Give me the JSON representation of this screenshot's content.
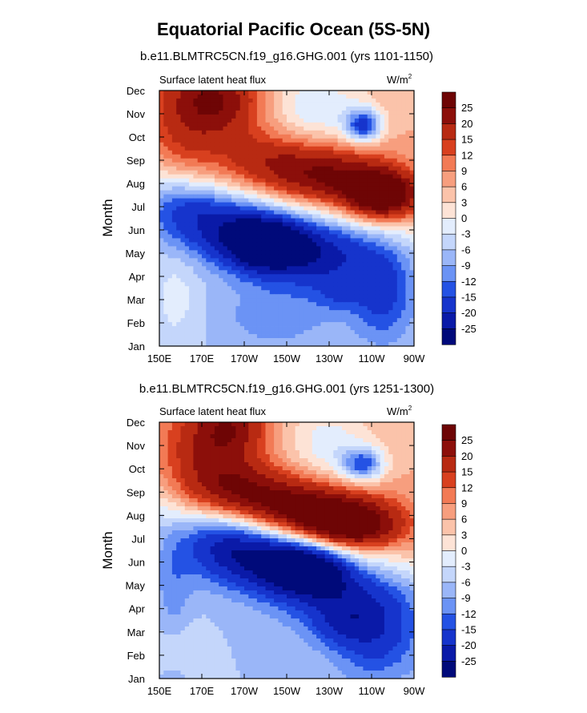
{
  "figure_title": "Equatorial Pacific Ocean (5S-5N)",
  "colors": {
    "levels_palette": [
      "#000a7a",
      "#0a1aa8",
      "#1634cc",
      "#2452e4",
      "#3d6fee",
      "#6b93f5",
      "#9ab6f8",
      "#c4d6fb",
      "#e3edfd",
      "#fde3d6",
      "#fbc3aa",
      "#f79e7e",
      "#f27a55",
      "#e85a34",
      "#d8401f",
      "#b82a12",
      "#8c0f0a",
      "#6e0505"
    ]
  },
  "chart_data": [
    {
      "type": "heatmap",
      "subtitle": "b.e11.BLMTRC5CN.f19_g16.GHG.001 (yrs 1101-1150)",
      "left_label": "Surface latent heat flux",
      "units_label": "W/m",
      "units_sup": "2",
      "ylabel": "Month",
      "x_ticks": [
        "150E",
        "170E",
        "170W",
        "150W",
        "130W",
        "110W",
        "90W"
      ],
      "xlim_deg_east": [
        150,
        270
      ],
      "y_ticks": [
        "Jan",
        "Feb",
        "Mar",
        "Apr",
        "May",
        "Jun",
        "Jul",
        "Aug",
        "Sep",
        "Oct",
        "Nov",
        "Dec"
      ],
      "colorbar_levels": [
        "25",
        "20",
        "15",
        "12",
        "9",
        "6",
        "3",
        "0",
        "-3",
        "-6",
        "-9",
        "-12",
        "-15",
        "-20",
        "-25"
      ],
      "contour_levels": [
        -25,
        -20,
        -15,
        -12,
        -9,
        -6,
        -3,
        0,
        3,
        6,
        9,
        12,
        15,
        20,
        25
      ],
      "features": [
        {
          "lon": 178,
          "month": 10.6,
          "value": 17,
          "s_lon": 14,
          "s_month": 1.1
        },
        {
          "lon": 160,
          "month": 9.0,
          "value": 9,
          "s_lon": 14,
          "s_month": 2.6
        },
        {
          "lon": 255,
          "month": 6.5,
          "value": 29,
          "s_lon": 12,
          "s_month": 0.75
        },
        {
          "lon": 230,
          "month": 7.3,
          "value": 18,
          "s_lon": 18,
          "s_month": 0.9
        },
        {
          "lon": 200,
          "month": 7.9,
          "value": 12,
          "s_lon": 18,
          "s_month": 1.0
        },
        {
          "lon": 246,
          "month": 9.5,
          "value": -21,
          "s_lon": 6,
          "s_month": 0.5
        },
        {
          "lon": 224,
          "month": 10.2,
          "value": -9,
          "s_lon": 16,
          "s_month": 1.2
        },
        {
          "lon": 200,
          "month": 4.4,
          "value": -26,
          "s_lon": 13,
          "s_month": 0.8
        },
        {
          "lon": 225,
          "month": 4.0,
          "value": -16,
          "s_lon": 20,
          "s_month": 1.0
        },
        {
          "lon": 178,
          "month": 5.2,
          "value": -15,
          "s_lon": 18,
          "s_month": 1.0
        },
        {
          "lon": 160,
          "month": 6.2,
          "value": -9,
          "s_lon": 12,
          "s_month": 0.9
        },
        {
          "lon": 234,
          "month": 2.3,
          "value": -6,
          "s_lon": 8,
          "s_month": 0.6
        },
        {
          "lon": 205,
          "month": 1.3,
          "value": -5,
          "s_lon": 18,
          "s_month": 1.0
        },
        {
          "lon": 255,
          "month": 2.3,
          "value": -11,
          "s_lon": 10,
          "s_month": 1.4
        },
        {
          "lon": 158,
          "month": 2.0,
          "value": 4,
          "s_lon": 8,
          "s_month": 1.5
        }
      ]
    },
    {
      "type": "heatmap",
      "subtitle": "b.e11.BLMTRC5CN.f19_g16.GHG.001 (yrs 1251-1300)",
      "left_label": "Surface latent heat flux",
      "units_label": "W/m",
      "units_sup": "2",
      "ylabel": "Month",
      "x_ticks": [
        "150E",
        "170E",
        "170W",
        "150W",
        "130W",
        "110W",
        "90W"
      ],
      "xlim_deg_east": [
        150,
        270
      ],
      "y_ticks": [
        "Jan",
        "Feb",
        "Mar",
        "Apr",
        "May",
        "Jun",
        "Jul",
        "Aug",
        "Sep",
        "Oct",
        "Nov",
        "Dec"
      ],
      "colorbar_levels": [
        "25",
        "20",
        "15",
        "12",
        "9",
        "6",
        "3",
        "0",
        "-3",
        "-6",
        "-9",
        "-12",
        "-15",
        "-20",
        "-25"
      ],
      "contour_levels": [
        -25,
        -20,
        -15,
        -12,
        -9,
        -6,
        -3,
        0,
        3,
        6,
        9,
        12,
        15,
        20,
        25
      ],
      "features": [
        {
          "lon": 184,
          "month": 10.8,
          "value": 15,
          "s_lon": 12,
          "s_month": 1.0
        },
        {
          "lon": 168,
          "month": 9.4,
          "value": 10,
          "s_lon": 14,
          "s_month": 2.0
        },
        {
          "lon": 238,
          "month": 6.6,
          "value": 30,
          "s_lon": 18,
          "s_month": 0.8
        },
        {
          "lon": 210,
          "month": 7.5,
          "value": 20,
          "s_lon": 20,
          "s_month": 0.9
        },
        {
          "lon": 185,
          "month": 8.2,
          "value": 12,
          "s_lon": 14,
          "s_month": 1.0
        },
        {
          "lon": 246,
          "month": 9.2,
          "value": -18,
          "s_lon": 7,
          "s_month": 0.5
        },
        {
          "lon": 230,
          "month": 9.9,
          "value": -8,
          "s_lon": 14,
          "s_month": 1.3
        },
        {
          "lon": 220,
          "month": 4.7,
          "value": -24,
          "s_lon": 14,
          "s_month": 0.8
        },
        {
          "lon": 200,
          "month": 5.2,
          "value": -18,
          "s_lon": 20,
          "s_month": 1.0
        },
        {
          "lon": 178,
          "month": 6.2,
          "value": -12,
          "s_lon": 14,
          "s_month": 1.0
        },
        {
          "lon": 240,
          "month": 3.3,
          "value": -13,
          "s_lon": 20,
          "s_month": 1.0
        },
        {
          "lon": 236,
          "month": 2.2,
          "value": -5,
          "s_lon": 10,
          "s_month": 0.6
        },
        {
          "lon": 252,
          "month": 1.6,
          "value": -10,
          "s_lon": 14,
          "s_month": 1.2
        },
        {
          "lon": 157,
          "month": 3.0,
          "value": -5,
          "s_lon": 6,
          "s_month": 2.5
        },
        {
          "lon": 158,
          "month": 1.4,
          "value": 5,
          "s_lon": 8,
          "s_month": 1.0
        }
      ]
    }
  ]
}
